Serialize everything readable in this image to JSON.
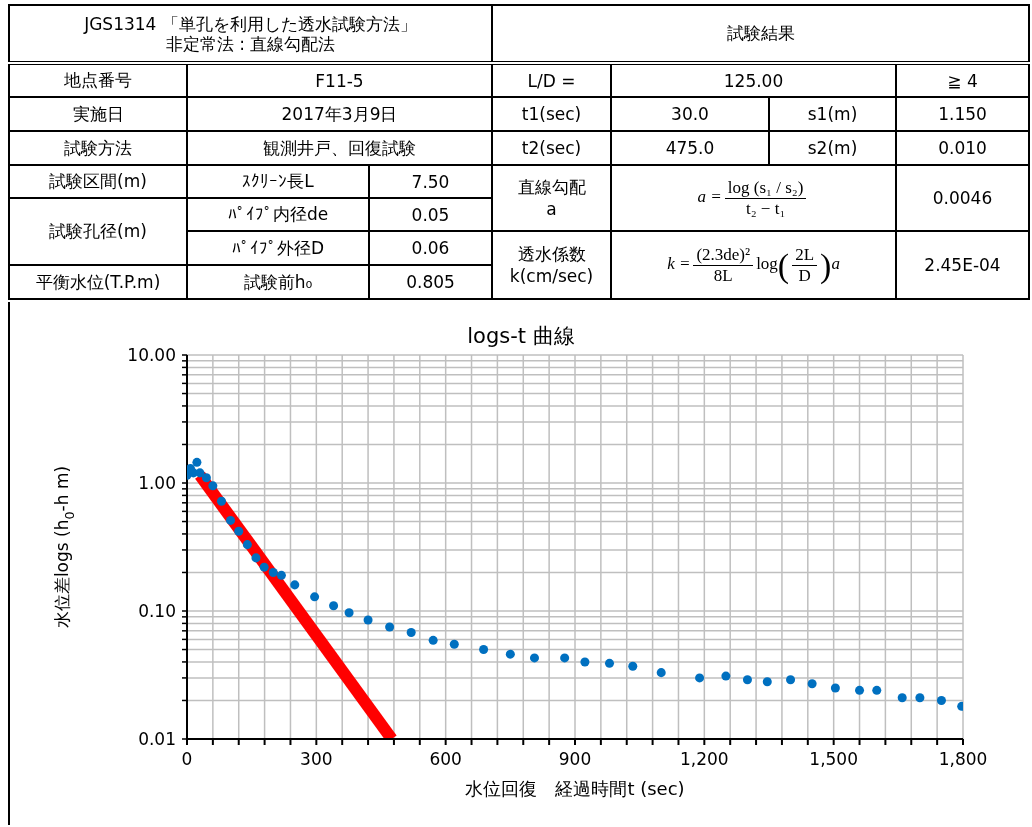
{
  "chart_data": [
    {
      "type": "other",
      "annotations": [
        "JGS1314 「単孔を利用した透水試験方法」",
        "非定常法 : 直線勾配法",
        "試験結果",
        "地点番号",
        "F11-5",
        "L/D =",
        "125.00",
        "≧ 4",
        "実施日",
        "2017年3月9日",
        "t1(sec)",
        "30.0",
        "s1(m)",
        "1.150",
        "試験方法",
        "観測井戸、回復試験",
        "t2(sec)",
        "475.0",
        "s2(m)",
        "0.010",
        "試験区間(m)",
        "ｽｸﾘｰﾝ長L",
        "7.50",
        "直線勾配",
        "a",
        "a =",
        "log (s₁ / s₂)",
        "t₂ − t₁",
        "0.0046",
        "試験孔径(m)",
        "ﾊﾟｲﾌﾟ内径de",
        "0.05",
        "ﾊﾟｲﾌﾟ外径D",
        "0.06",
        "透水係数",
        "k(cm/sec)",
        "k =",
        "(2.3de)²",
        "8L",
        "log",
        "(",
        "2L",
        "D",
        ")",
        "a",
        "2.45E-04",
        "平衡水位(T.P.m)",
        "試験前h₀",
        "0.805"
      ]
    },
    {
      "type": "scatter",
      "title": "logs-t 曲線",
      "xlabel": "水位回復　経過時間t (sec)",
      "ylabel": "水位差logs (h$_{0}$-h m)",
      "log": "y",
      "grid": true,
      "xlim": [
        0,
        1800
      ],
      "xticks": [
        0,
        {
          "value": 60,
          "label": null
        },
        {
          "value": 120,
          "label": null
        },
        {
          "value": 180,
          "label": null
        },
        {
          "value": 240,
          "label": null
        },
        300,
        {
          "value": 360,
          "label": null
        },
        {
          "value": 420,
          "label": null
        },
        {
          "value": 480,
          "label": null
        },
        {
          "value": 540,
          "label": null
        },
        600,
        {
          "value": 660,
          "label": null
        },
        {
          "value": 720,
          "label": null
        },
        {
          "value": 780,
          "label": null
        },
        {
          "value": 840,
          "label": null
        },
        900,
        {
          "value": 960,
          "label": null
        },
        {
          "value": 1020,
          "label": null
        },
        {
          "value": 1080,
          "label": null
        },
        {
          "value": 1140,
          "label": null
        },
        {
          "value": 1200,
          "label": "1,200"
        },
        {
          "value": 1260,
          "label": null
        },
        {
          "value": 1320,
          "label": null
        },
        {
          "value": 1380,
          "label": null
        },
        {
          "value": 1440,
          "label": null
        },
        {
          "value": 1500,
          "label": "1,500"
        },
        {
          "value": 1560,
          "label": null
        },
        {
          "value": 1620,
          "label": null
        },
        {
          "value": 1680,
          "label": null
        },
        {
          "value": 1740,
          "label": null
        },
        {
          "value": 1800,
          "label": "1,800"
        }
      ],
      "ylim": [
        0.01,
        10
      ],
      "yticks": [
        {
          "value": 0.01,
          "label": "0.01"
        },
        {
          "value": 0.02,
          "label": null
        },
        {
          "value": 0.03,
          "label": null
        },
        {
          "value": 0.04,
          "label": null
        },
        {
          "value": 0.05,
          "label": null
        },
        {
          "value": 0.06,
          "label": null
        },
        {
          "value": 0.07,
          "label": null
        },
        {
          "value": 0.08,
          "label": null
        },
        {
          "value": 0.09,
          "label": null
        },
        {
          "value": 0.1,
          "label": "0.10"
        },
        {
          "value": 0.2,
          "label": null
        },
        {
          "value": 0.3,
          "label": null
        },
        {
          "value": 0.4,
          "label": null
        },
        {
          "value": 0.5,
          "label": null
        },
        {
          "value": 0.6,
          "label": null
        },
        {
          "value": 0.7,
          "label": null
        },
        {
          "value": 0.8,
          "label": null
        },
        {
          "value": 0.9,
          "label": null
        },
        {
          "value": 1,
          "label": "1.00"
        },
        {
          "value": 2,
          "label": null
        },
        {
          "value": 3,
          "label": null
        },
        {
          "value": 4,
          "label": null
        },
        {
          "value": 5,
          "label": null
        },
        {
          "value": 6,
          "label": null
        },
        {
          "value": 7,
          "label": null
        },
        {
          "value": 8,
          "label": null
        },
        {
          "value": 9,
          "label": null
        },
        {
          "value": 10,
          "label": "10.00"
        }
      ],
      "series": [
        {
          "type": "scatter",
          "color": "#0070c0",
          "marker": "circle",
          "x": [
            0,
            8,
            15,
            23,
            30,
            45,
            60,
            80,
            101,
            120,
            140,
            160,
            179,
            200,
            219,
            250,
            296,
            340,
            376,
            420,
            470,
            520,
            571,
            620,
            688,
            750,
            806,
            876,
            923,
            980,
            1034,
            1100,
            1189,
            1250,
            1300,
            1346,
            1400,
            1450,
            1504,
            1560,
            1600,
            1659,
            1700,
            1750,
            1797
          ],
          "values": [
            1.15,
            1.3,
            1.2,
            1.45,
            1.2,
            1.1,
            0.95,
            0.72,
            0.51,
            0.42,
            0.33,
            0.26,
            0.22,
            0.2,
            0.19,
            0.16,
            0.129,
            0.11,
            0.097,
            0.085,
            0.075,
            0.068,
            0.059,
            0.055,
            0.05,
            0.046,
            0.043,
            0.043,
            0.04,
            0.039,
            0.037,
            0.033,
            0.03,
            0.031,
            0.029,
            0.028,
            0.029,
            0.027,
            0.025,
            0.024,
            0.024,
            0.021,
            0.021,
            0.02,
            0.018
          ]
        },
        {
          "type": "line",
          "color": "#ff0000",
          "marker": "none",
          "x": [
            30,
            475
          ],
          "values": [
            1.15,
            0.01
          ]
        }
      ]
    }
  ]
}
